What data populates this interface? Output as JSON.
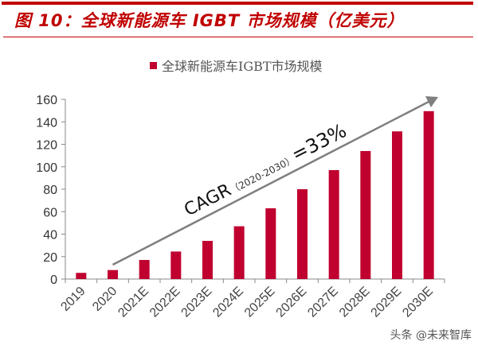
{
  "header": {
    "title": "图 10：全球新能源车 IGBT 市场规模（亿美元）"
  },
  "watermark": "头条 @未来智库",
  "colors": {
    "bar": "#c0002f",
    "title": "#c00000",
    "arrow": "#7f7f7f"
  },
  "chart_data": {
    "type": "bar",
    "title": "",
    "categories": [
      "2019",
      "2020",
      "2021E",
      "2022E",
      "2023E",
      "2024E",
      "2025E",
      "2026E",
      "2027E",
      "2028E",
      "2029E",
      "2030E"
    ],
    "series": [
      {
        "name": "全球新能源车IGBT市场规模",
        "values": [
          5.5,
          8,
          17,
          24.5,
          34,
          47,
          63,
          80,
          97,
          114,
          131.5,
          149.5
        ]
      }
    ],
    "ylim": [
      0,
      160
    ],
    "yticks": [
      0,
      20,
      40,
      60,
      80,
      100,
      120,
      140,
      160
    ],
    "grid": false,
    "legend": "top-center",
    "annotation": {
      "label": "CAGR",
      "sub": "（2020-2030）",
      "value": "=33%",
      "from": "2020",
      "to": "2030E"
    }
  }
}
